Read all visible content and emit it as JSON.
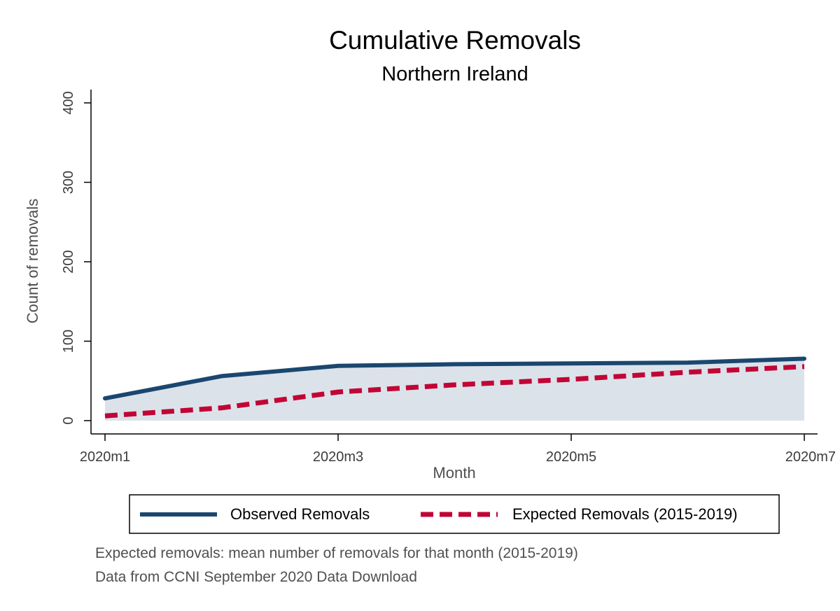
{
  "chart_data": {
    "type": "area",
    "title": "Cumulative Removals",
    "subtitle": "Northern Ireland",
    "xlabel": "Month",
    "ylabel": "Count of removals",
    "x": [
      "2020m1",
      "2020m2",
      "2020m3",
      "2020m4",
      "2020m5",
      "2020m6",
      "2020m7"
    ],
    "x_ticks": [
      "2020m1",
      "2020m3",
      "2020m5",
      "2020m7"
    ],
    "y_ticks": [
      0,
      100,
      200,
      300,
      400
    ],
    "ylim": [
      0,
      400
    ],
    "grid": false,
    "legend_position": "bottom",
    "series": [
      {
        "name": "Observed Removals",
        "values": [
          28,
          56,
          69,
          71,
          72,
          73,
          78
        ],
        "style": "solid",
        "color": "#1a476f",
        "fill_color": "#dce2ea"
      },
      {
        "name": "Expected Removals (2015-2019)",
        "values": [
          6,
          16,
          36,
          45,
          52,
          61,
          68
        ],
        "style": "dashed",
        "color": "#c10534",
        "fill_color": "#f5d5dc"
      }
    ],
    "notes": [
      "Expected removals: mean number of removals for that month (2015-2019)",
      "Data from CCNI September 2020 Data Download"
    ]
  }
}
